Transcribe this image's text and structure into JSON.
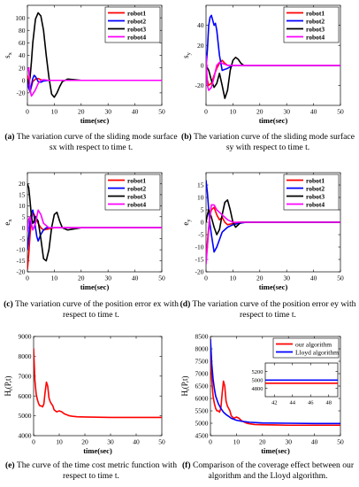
{
  "panels": [
    {
      "id": "a",
      "ylabel": "s",
      "ylabel_sub": "x",
      "xlabel": "time(sec)",
      "caption_tag": "(a)",
      "caption_text": "The variation curve of the sliding mode surface sx with respect to time t.",
      "chart_data": {
        "type": "line",
        "xlim": [
          0,
          50
        ],
        "ylim": [
          -40,
          120
        ],
        "xticks": [
          0,
          10,
          20,
          30,
          40,
          50
        ],
        "yticks": [
          -20,
          0,
          20,
          40,
          60,
          80,
          100
        ],
        "legend": "top-right",
        "series": [
          {
            "name": "robot1",
            "color": "#ff0000",
            "x": [
              0,
              0.5,
              1,
              1.5,
              2,
              3,
              4,
              5,
              6,
              8,
              10,
              12,
              15,
              20,
              50
            ],
            "y": [
              8,
              -3,
              -18,
              -10,
              -2,
              2,
              3,
              1,
              0,
              0,
              0,
              0,
              0,
              0,
              0
            ]
          },
          {
            "name": "robot2",
            "color": "#0000ff",
            "x": [
              0,
              0.5,
              1,
              1.5,
              2,
              2.5,
              3,
              4,
              5,
              6,
              8,
              10,
              50
            ],
            "y": [
              -2,
              -12,
              -18,
              -8,
              3,
              8,
              6,
              -2,
              -3,
              -1,
              0,
              0,
              0
            ]
          },
          {
            "name": "robot3",
            "color": "#000000",
            "x": [
              0,
              0.5,
              1,
              1.5,
              2,
              3,
              4,
              5,
              6,
              7,
              8,
              9,
              10,
              11,
              12,
              13,
              15,
              20,
              50
            ],
            "y": [
              2,
              -5,
              5,
              30,
              60,
              98,
              108,
              103,
              80,
              40,
              5,
              -22,
              -27,
              -20,
              -10,
              -2,
              2,
              0,
              0
            ]
          },
          {
            "name": "robot4",
            "color": "#ff00ff",
            "x": [
              0,
              0.5,
              1,
              1.5,
              2,
              3,
              4,
              5,
              6,
              8,
              10,
              50
            ],
            "y": [
              15,
              20,
              -15,
              -25,
              -22,
              -15,
              -5,
              0,
              1,
              0,
              0,
              0
            ]
          }
        ]
      }
    },
    {
      "id": "b",
      "ylabel": "s",
      "ylabel_sub": "y",
      "xlabel": "time(sec)",
      "caption_tag": "(b)",
      "caption_text": "The variation curve of the sliding mode surface sy with respect to time t.",
      "chart_data": {
        "type": "line",
        "xlim": [
          0,
          50
        ],
        "ylim": [
          -40,
          60
        ],
        "xticks": [
          0,
          10,
          20,
          30,
          40,
          50
        ],
        "yticks": [
          -20,
          0,
          20,
          40
        ],
        "legend": "top-right",
        "series": [
          {
            "name": "robot1",
            "color": "#ff0000",
            "x": [
              0,
              0.5,
              1,
              2,
              3,
              4,
              5,
              6,
              7,
              8,
              10,
              12,
              15,
              50
            ],
            "y": [
              -5,
              -15,
              -20,
              -18,
              -10,
              -3,
              2,
              5,
              2,
              0,
              0,
              0,
              0,
              0
            ]
          },
          {
            "name": "robot2",
            "color": "#0000ff",
            "x": [
              0,
              0.5,
              1,
              1.5,
              2,
              2.5,
              3,
              3.5,
              4,
              5,
              6,
              8,
              10,
              12,
              50
            ],
            "y": [
              -2,
              15,
              40,
              48,
              50,
              45,
              40,
              42,
              35,
              10,
              -5,
              -3,
              0,
              0,
              0
            ]
          },
          {
            "name": "robot3",
            "color": "#000000",
            "x": [
              0,
              1,
              2,
              3,
              4,
              5,
              6,
              7,
              8,
              9,
              10,
              11,
              12,
              13,
              14,
              16,
              20,
              50
            ],
            "y": [
              0,
              -5,
              -15,
              -22,
              -18,
              -8,
              -20,
              -33,
              -25,
              -5,
              5,
              8,
              6,
              2,
              0,
              0,
              0,
              0
            ]
          },
          {
            "name": "robot4",
            "color": "#ff00ff",
            "x": [
              0,
              0.5,
              1,
              2,
              3,
              4,
              5,
              6,
              8,
              10,
              50
            ],
            "y": [
              10,
              -20,
              -25,
              -22,
              -12,
              0,
              3,
              2,
              0,
              0,
              0
            ]
          }
        ]
      }
    },
    {
      "id": "c",
      "ylabel": "e",
      "ylabel_sub": "x",
      "xlabel": "time(sec)",
      "caption_tag": "(c)",
      "caption_text": "The variation curve of the position error ex with respect to time t.",
      "chart_data": {
        "type": "line",
        "xlim": [
          0,
          50
        ],
        "ylim": [
          -20,
          25
        ],
        "xticks": [
          0,
          10,
          20,
          30,
          40,
          50
        ],
        "yticks": [
          -20,
          -15,
          -10,
          -5,
          0,
          5,
          10,
          15,
          20
        ],
        "legend": "top-right",
        "series": [
          {
            "name": "robot1",
            "color": "#ff0000",
            "x": [
              0,
              0.5,
              1,
              1.5,
              2,
              3,
              4,
              5,
              6,
              8,
              10,
              12,
              15,
              50
            ],
            "y": [
              -19,
              -12,
              -3,
              4,
              7,
              5,
              2,
              0,
              -1,
              -0.5,
              0,
              0,
              0,
              0
            ]
          },
          {
            "name": "robot2",
            "color": "#0000ff",
            "x": [
              0,
              0.5,
              1,
              1.5,
              2,
              2.5,
              3,
              3.5,
              4,
              5,
              6,
              7,
              8,
              10,
              12,
              50
            ],
            "y": [
              -10,
              -4,
              3,
              7,
              8,
              5,
              0,
              -4,
              -6,
              -3,
              -1,
              0,
              0,
              0,
              0,
              0
            ]
          },
          {
            "name": "robot3",
            "color": "#000000",
            "x": [
              0,
              0.5,
              1,
              1.5,
              2,
              2.5,
              3,
              4,
              5,
              6,
              7,
              8,
              9,
              10,
              11,
              12,
              13,
              15,
              20,
              50
            ],
            "y": [
              20,
              18,
              12,
              5,
              2,
              3,
              5,
              3,
              -5,
              -14,
              -15,
              -10,
              0,
              6,
              7,
              3,
              0,
              -1,
              0,
              0
            ]
          },
          {
            "name": "robot4",
            "color": "#ff00ff",
            "x": [
              0,
              0.5,
              1,
              1.5,
              2,
              3,
              4,
              5,
              6,
              8,
              10,
              12,
              50
            ],
            "y": [
              -2,
              4,
              5,
              2,
              -1,
              2,
              8,
              6,
              2,
              0,
              0,
              0,
              0
            ]
          }
        ]
      }
    },
    {
      "id": "d",
      "ylabel": "e",
      "ylabel_sub": "y",
      "xlabel": "time(sec)",
      "caption_tag": "(d)",
      "caption_text": "The variation curve of the position error ey with respect to time t.",
      "chart_data": {
        "type": "line",
        "xlim": [
          0,
          50
        ],
        "ylim": [
          -20,
          20
        ],
        "xticks": [
          0,
          10,
          20,
          30,
          40,
          50
        ],
        "yticks": [
          -20,
          -15,
          -10,
          -5,
          0,
          5,
          10,
          15
        ],
        "legend": "top-right",
        "series": [
          {
            "name": "robot1",
            "color": "#ff0000",
            "x": [
              0,
              0.5,
              1,
              1.5,
              2,
              3,
              4,
              5,
              6,
              7,
              8,
              10,
              12,
              15,
              20,
              50
            ],
            "y": [
              -15,
              -8,
              -2,
              3,
              5,
              6,
              3,
              1,
              2,
              0,
              -1,
              -0.5,
              0,
              0,
              0,
              0
            ]
          },
          {
            "name": "robot2",
            "color": "#0000ff",
            "x": [
              0,
              0.5,
              1,
              1.5,
              2,
              3,
              4,
              5,
              6,
              7,
              8,
              10,
              12,
              15,
              20,
              50
            ],
            "y": [
              17,
              12,
              5,
              -1,
              -5,
              -12,
              -10,
              -7,
              -4,
              -3,
              -2,
              -1,
              -0.5,
              0,
              0,
              0
            ]
          },
          {
            "name": "robot3",
            "color": "#000000",
            "x": [
              0,
              0.5,
              1,
              2,
              3,
              4,
              5,
              6,
              7,
              8,
              9,
              10,
              11,
              12,
              13,
              15,
              20,
              50
            ],
            "y": [
              0,
              3,
              5,
              2,
              -2,
              -5,
              -3,
              3,
              8,
              9,
              5,
              0,
              -2,
              -1,
              0,
              0,
              0,
              0
            ]
          },
          {
            "name": "robot4",
            "color": "#ff00ff",
            "x": [
              0,
              0.5,
              1,
              1.5,
              2,
              3,
              4,
              5,
              6,
              8,
              10,
              12,
              50
            ],
            "y": [
              -17,
              -10,
              -3,
              3,
              7,
              7,
              5,
              4,
              3,
              1,
              0,
              0,
              0
            ]
          }
        ]
      }
    },
    {
      "id": "e",
      "ylabel": "H",
      "ylabel_sub": "t",
      "ylabel_tail": "(P,t)",
      "xlabel": "time(sec)",
      "caption_tag": "(e)",
      "caption_text": "The curve of the time cost metric function with respect to time t.",
      "chart_data": {
        "type": "line",
        "xlim": [
          0,
          50
        ],
        "ylim": [
          4000,
          9000
        ],
        "xticks": [
          0,
          10,
          20,
          30,
          40,
          50
        ],
        "yticks": [
          4000,
          5000,
          6000,
          7000,
          8000,
          9000
        ],
        "series": [
          {
            "name": "",
            "color": "#ff0000",
            "x": [
              0,
              0.5,
              1,
              1.5,
              2,
              2.5,
              3,
              3.5,
              4,
              4.5,
              5,
              5.5,
              6,
              6.5,
              7,
              7.5,
              8,
              9,
              10,
              11,
              12,
              13,
              14,
              15,
              17,
              20,
              25,
              30,
              40,
              50
            ],
            "y": [
              8400,
              6800,
              6100,
              5800,
              5600,
              5500,
              5500,
              5450,
              5600,
              6200,
              6700,
              6500,
              5900,
              5700,
              5600,
              5500,
              5300,
              5200,
              5250,
              5200,
              5100,
              5050,
              5000,
              4980,
              4950,
              4940,
              4930,
              4920,
              4920,
              4920
            ]
          }
        ]
      }
    },
    {
      "id": "f",
      "ylabel": "H",
      "ylabel_sub": "t",
      "ylabel_tail": "(P,t)",
      "xlabel": "time(sec)",
      "caption_tag": "(f)",
      "caption_text": "Comparison of the coverage effect between our algorithm and the Lloyd algorithm.",
      "chart_data": {
        "type": "line",
        "xlim": [
          0,
          50
        ],
        "ylim": [
          4500,
          8500
        ],
        "xticks": [
          0,
          10,
          20,
          30,
          40,
          50
        ],
        "yticks": [
          4500,
          5000,
          5500,
          6000,
          6500,
          7000,
          7500,
          8000,
          8500
        ],
        "legend": "top-right",
        "series": [
          {
            "name": "our algorithm",
            "color": "#ff0000",
            "x": [
              0,
              0.5,
              1,
              1.5,
              2,
              2.5,
              3,
              3.5,
              4,
              4.5,
              5,
              5.5,
              6,
              6.5,
              7,
              7.5,
              8,
              9,
              10,
              11,
              12,
              13,
              14,
              15,
              17,
              20,
              25,
              30,
              40,
              50
            ],
            "y": [
              8400,
              6800,
              6100,
              5800,
              5600,
              5500,
              5500,
              5450,
              5600,
              6200,
              6700,
              6500,
              5900,
              5700,
              5600,
              5500,
              5300,
              5200,
              5250,
              5200,
              5100,
              5050,
              5000,
              4980,
              4950,
              4940,
              4930,
              4920,
              4920,
              4920
            ]
          },
          {
            "name": "Lloyd algorithm",
            "color": "#0000ff",
            "x": [
              0,
              0.5,
              1,
              1.5,
              2,
              3,
              4,
              5,
              6,
              7,
              8,
              10,
              12,
              15,
              20,
              30,
              40,
              50
            ],
            "y": [
              8400,
              7400,
              6800,
              6400,
              6100,
              5800,
              5600,
              5450,
              5350,
              5280,
              5200,
              5120,
              5080,
              5040,
              5010,
              5000,
              4990,
              4990
            ]
          }
        ],
        "inset": {
          "xlim": [
            41,
            49
          ],
          "ylim": [
            4600,
            5400
          ],
          "xticks": [
            42,
            44,
            46,
            48
          ],
          "yticks": [
            4800,
            5000,
            5200
          ],
          "series": [
            {
              "name": "our algorithm",
              "color": "#ff0000",
              "x": [
                41,
                49
              ],
              "y": [
                4920,
                4920
              ]
            },
            {
              "name": "Lloyd algorithm",
              "color": "#0000ff",
              "x": [
                41,
                49
              ],
              "y": [
                4995,
                4995
              ]
            }
          ]
        }
      }
    }
  ]
}
